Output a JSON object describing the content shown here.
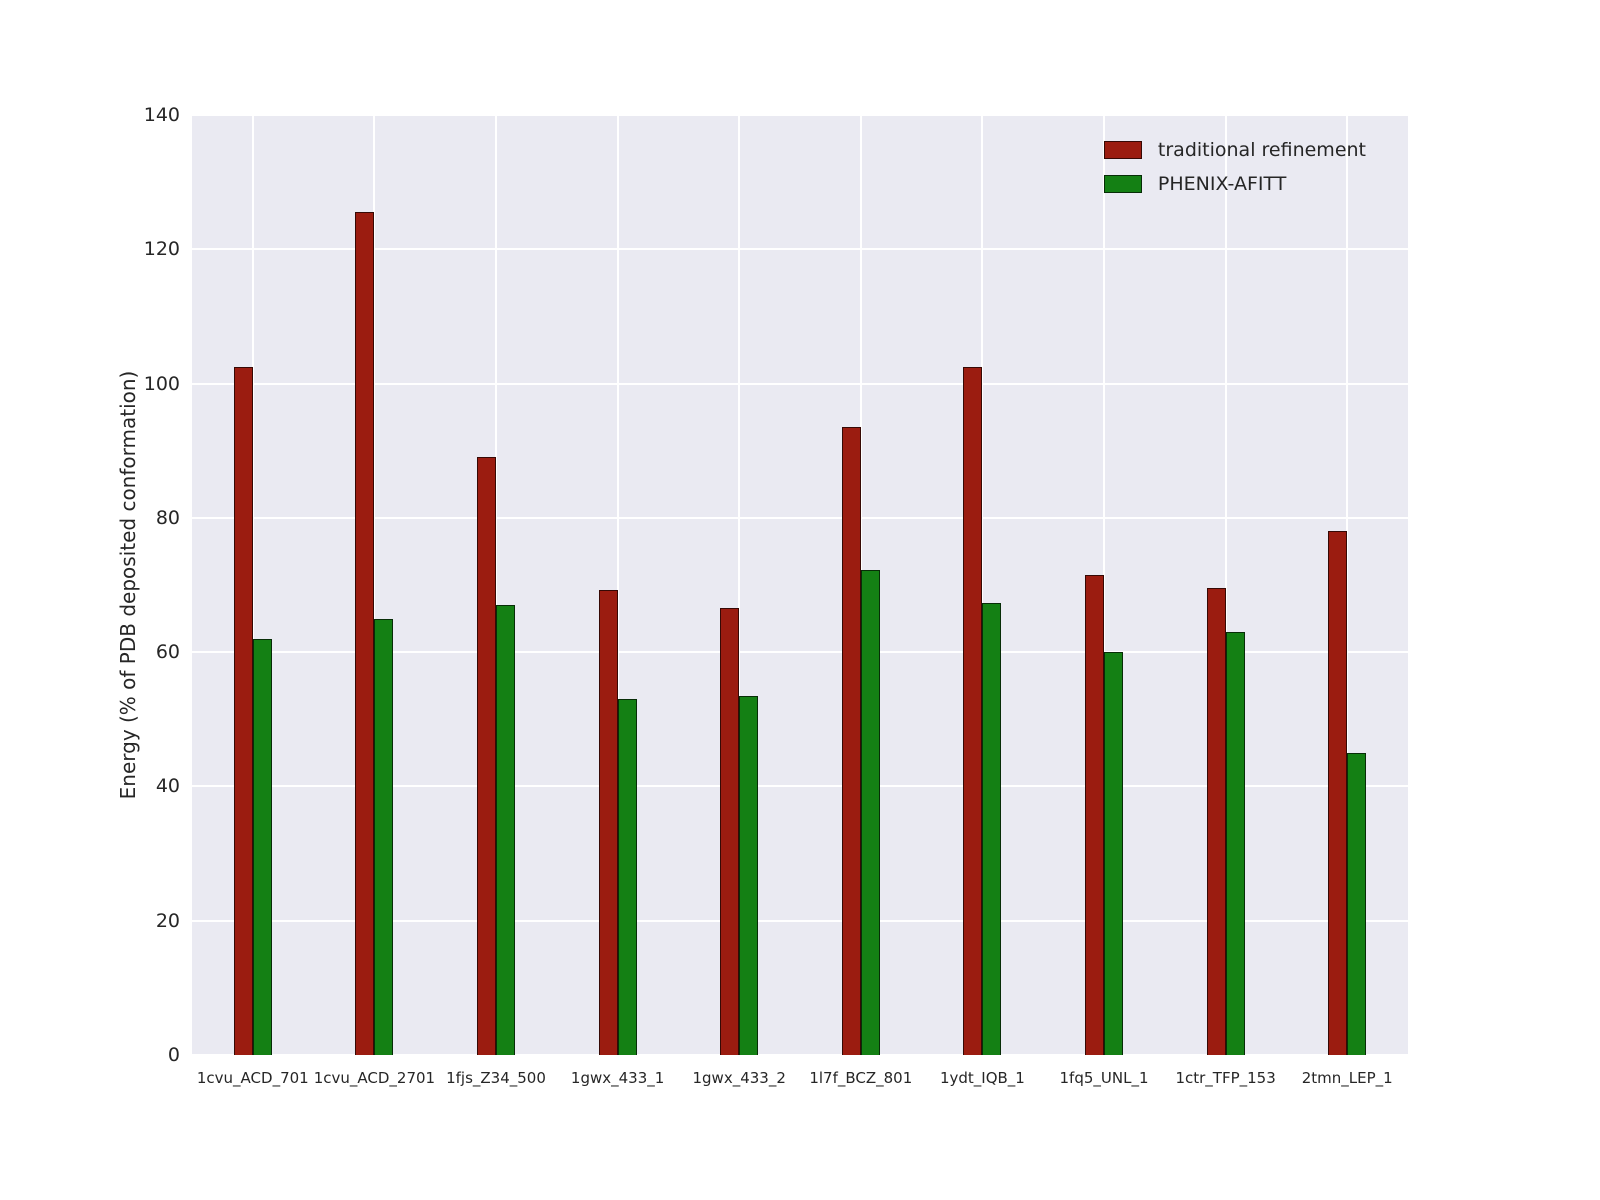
{
  "chart_data": {
    "type": "bar",
    "title": "",
    "xlabel": "",
    "ylabel": "Energy (% of PDB deposited conformation)",
    "ylim": [
      0,
      140
    ],
    "yticks": [
      0,
      20,
      40,
      60,
      80,
      100,
      120,
      140
    ],
    "grid": true,
    "legend_position": "upper right",
    "plot_bg_color": "#eaeaf2",
    "categories": [
      "1cvu_ACD_701",
      "1cvu_ACD_2701",
      "1fjs_Z34_500",
      "1gwx_433_1",
      "1gwx_433_2",
      "1l7f_BCZ_801",
      "1ydt_IQB_1",
      "1fq5_UNL_1",
      "1ctr_TFP_153",
      "2tmn_LEP_1"
    ],
    "series": [
      {
        "name": "traditional refinement",
        "color": "#9b1c10",
        "values": [
          102.4,
          125.5,
          89.0,
          69.2,
          66.6,
          93.5,
          102.4,
          71.5,
          69.5,
          78.0
        ]
      },
      {
        "name": "PHENIX-AFITT",
        "color": "#148014",
        "values": [
          62.0,
          65.0,
          67.0,
          53.0,
          53.5,
          72.3,
          67.3,
          60.0,
          63.0,
          45.0
        ]
      }
    ]
  }
}
